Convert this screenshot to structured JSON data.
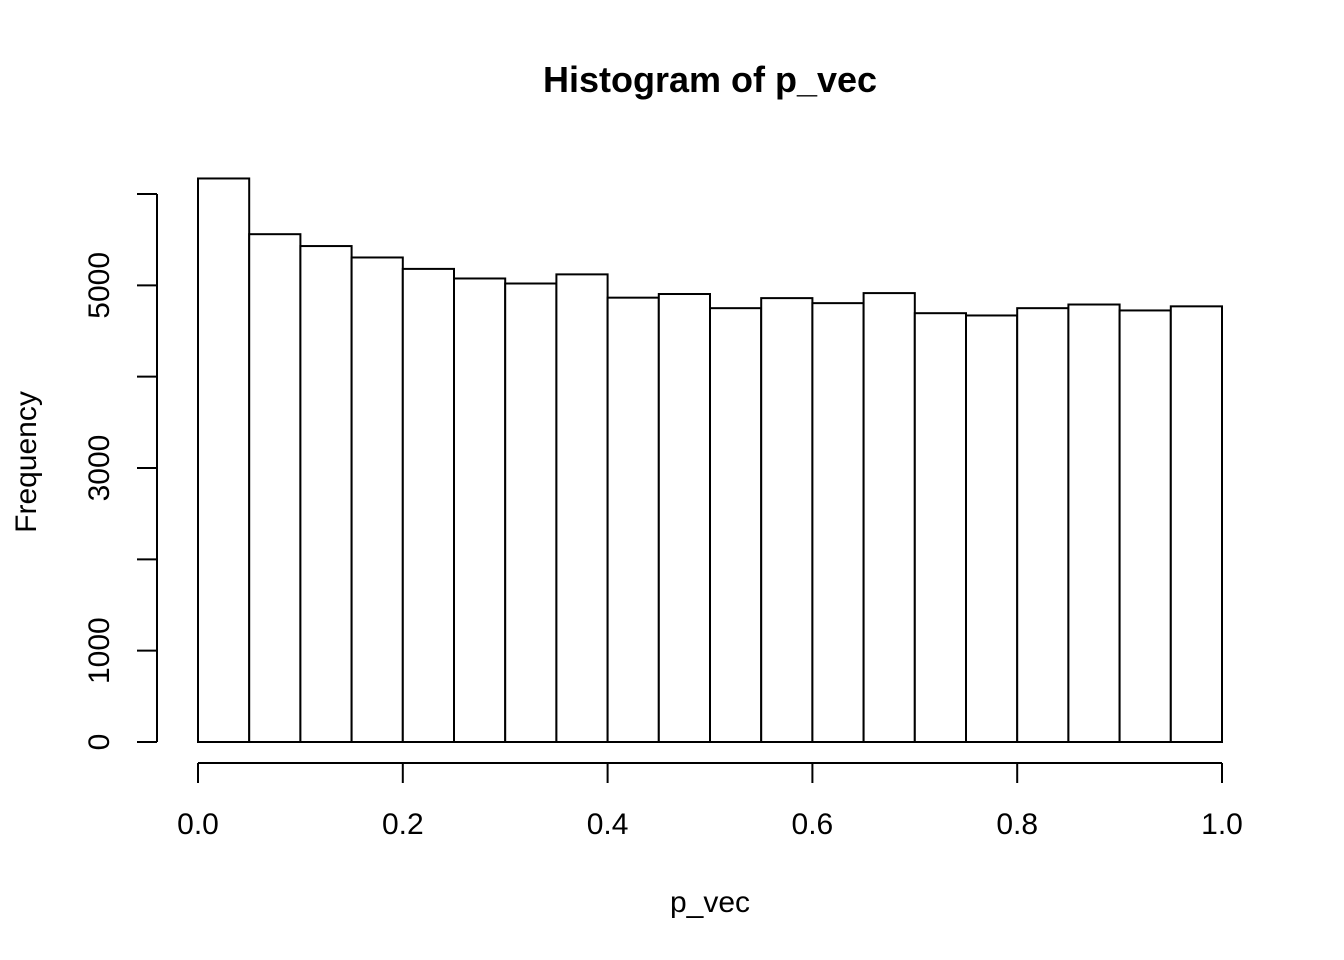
{
  "chart_data": {
    "type": "bar",
    "title": "Histogram of p_vec",
    "xlabel": "p_vec",
    "ylabel": "Frequency",
    "xlim": [
      0.0,
      1.0
    ],
    "ylim": [
      0,
      6000
    ],
    "bin_edges": [
      0.0,
      0.05,
      0.1,
      0.15,
      0.2,
      0.25,
      0.3,
      0.35,
      0.4,
      0.45,
      0.5,
      0.55,
      0.6,
      0.65,
      0.7,
      0.75,
      0.8,
      0.85,
      0.9,
      0.95,
      1.0
    ],
    "values": [
      6170,
      5560,
      5430,
      5305,
      5180,
      5075,
      5020,
      5120,
      4865,
      4905,
      4750,
      4860,
      4805,
      4915,
      4695,
      4670,
      4750,
      4790,
      4725,
      4770
    ],
    "x_ticks": [
      {
        "value": 0.0,
        "label": "0.0"
      },
      {
        "value": 0.2,
        "label": "0.2"
      },
      {
        "value": 0.4,
        "label": "0.4"
      },
      {
        "value": 0.6,
        "label": "0.6"
      },
      {
        "value": 0.8,
        "label": "0.8"
      },
      {
        "value": 1.0,
        "label": "1.0"
      }
    ],
    "y_ticks": [
      {
        "value": 0,
        "label": "0"
      },
      {
        "value": 1000,
        "label": "1000"
      },
      {
        "value": 2000,
        "label": ""
      },
      {
        "value": 3000,
        "label": "3000"
      },
      {
        "value": 4000,
        "label": ""
      },
      {
        "value": 5000,
        "label": "5000"
      },
      {
        "value": 6000,
        "label": ""
      }
    ],
    "grid": false,
    "bar_fill": "#ffffff",
    "bar_stroke": "#000000"
  }
}
